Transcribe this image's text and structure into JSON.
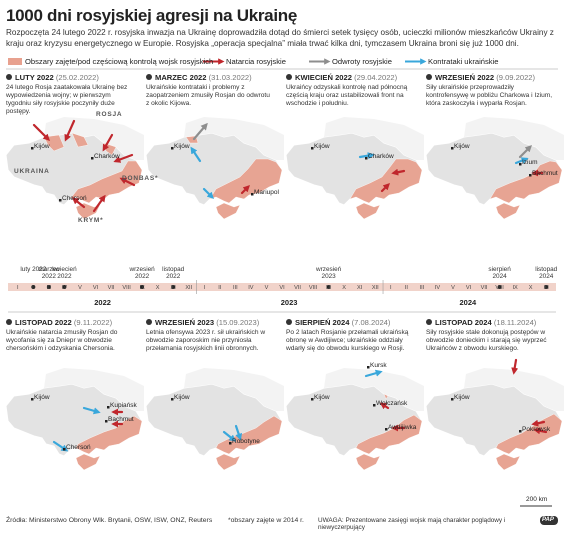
{
  "title": "1000 dni rosyjskiej agresji na Ukrainę",
  "intro": "Rozpoczęta 24 lutego 2022 r. rosyjska inwazja na Ukrainę doprowadziła dotąd do śmierci setek tysięcy osób, ucieczki milionów mieszkańców Ukrainy z kraju oraz kryzysu energetycznego w Europie. Rosyjska „operacja specjalna” miała trwać kilka dni, tymczasem Ukraina broni się już 1000 dni.",
  "legend": [
    "Obszary zajęte/pod częściową kontrolą wojsk rosyjskich",
    "Natarcia rosyjskie",
    "Odwroty rosyjskie",
    "Kontrataki ukraińskie"
  ],
  "panels": [
    {
      "heading": "LUTY 2022",
      "date": "(25.02.2022)",
      "text": "24 lutego Rosja zaatakowała Ukrainę bez wypowiedzenia wojny; w pierwszym tygodniu siły rosyjskie poczyniły duże postępy.",
      "places": [
        "ROSJA",
        "Kijów",
        "Charków",
        "UKRAINA",
        "Chersoń",
        "DONBAS*",
        "KRYM*"
      ]
    },
    {
      "heading": "MARZEC 2022",
      "date": "(31.03.2022)",
      "text": "Ukraińskie kontrataki i problemy z zaopatrzeniem zmusiły Rosjan do odwrotu z okolic Kijowa.",
      "places": [
        "Kijów",
        "Mariupol"
      ]
    },
    {
      "heading": "KWIECIEŃ 2022",
      "date": "(29.04.2022)",
      "text": "Ukraińcy odzyskali kontrolę nad północną częścią kraju oraz ustabilizowali front na wschodzie i południu.",
      "places": [
        "Kijów",
        "Charków"
      ]
    },
    {
      "heading": "WRZESIEŃ 2022",
      "date": "(9.09.2022)",
      "text": "Siły ukraińskie przeprowadziły kontrofensywę w pobliżu Charkowa i Izium, która zaskoczyła i wyparła Rosjan.",
      "places": [
        "Kijów",
        "Izium",
        "Bachmut"
      ]
    },
    {
      "heading": "LISTOPAD 2022",
      "date": "(9.11.2022)",
      "text": "Ukraińskie natarcia zmusiły Rosjan do wycofania się za Dniepr w obwodzie chersońskim i odzyskania Chersonia.",
      "places": [
        "Kijów",
        "Kupiańsk",
        "Bachmut",
        "Chersoń"
      ]
    },
    {
      "heading": "WRZESIEŃ 2023",
      "date": "(15.09.2023)",
      "text": "Letnia ofensywa 2023 r. sił ukraińskich w obwodzie zaporoskim nie przyniosła przełamania rosyjskich linii obronnych.",
      "places": [
        "Kijów",
        "Robotyne"
      ]
    },
    {
      "heading": "SIERPIEŃ 2024",
      "date": "(7.08.2024)",
      "text": "Po 2 latach Rosjanie przełamali ukraińską obronę w Awdijiwce; ukraińskie oddziały wdarły się do obwodu kurskiego w Rosji.",
      "places": [
        "Kursk",
        "Kijów",
        "Wołczańsk",
        "Awdijiwka"
      ]
    },
    {
      "heading": "LISTOPAD 2024",
      "date": "(18.11.2024)",
      "text": "Siły rosyjskie stale dokonują postępów w obwodzie donieckim i starają się wyprzeć Ukraińców z obwodu kurskiego.",
      "places": [
        "Kijów",
        "Pokrowsk"
      ]
    }
  ],
  "timeline": {
    "events": [
      "luty 2022",
      "marzec 2022",
      "kwiecień 2022",
      "wrzesień 2022",
      "listopad 2022",
      "wrzesień 2023",
      "sierpień 2024",
      "listopad 2024"
    ],
    "years": [
      {
        "label": "2022",
        "months": [
          "I",
          "II",
          "III",
          "IV",
          "V",
          "VI",
          "VII",
          "VIII",
          "IX",
          "X",
          "XI",
          "XII"
        ]
      },
      {
        "label": "2023",
        "months": [
          "I",
          "II",
          "III",
          "IV",
          "V",
          "VI",
          "VII",
          "VIII",
          "IX",
          "X",
          "XI",
          "XII"
        ]
      },
      {
        "label": "2024",
        "months": [
          "I",
          "II",
          "III",
          "IV",
          "V",
          "VI",
          "VII",
          "VIII",
          "IX",
          "X",
          "XI"
        ]
      }
    ]
  },
  "footer": {
    "sources": "Źródła: Ministerstwo Obrony Wlk. Brytanii, OSW, ISW, ONZ, Reuters",
    "note": "*obszary zajęte w 2014 r.",
    "warning": "UWAGA: Prezentowane zasięgi wojsk mają charakter poglądowy i niewyczerpujący",
    "scale": "200 km"
  },
  "logo": "PAP"
}
